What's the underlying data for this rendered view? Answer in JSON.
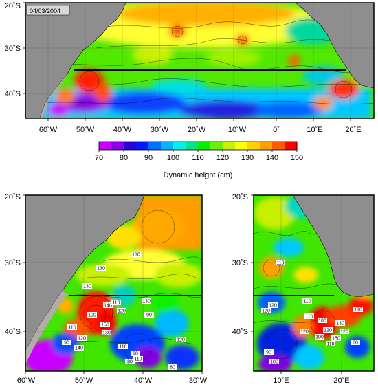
{
  "date": "04/03/2004",
  "colors": {
    "land": "#8e8e8e",
    "shelf": "#b4aca8",
    "section_line": "#000000",
    "frame": "#000000",
    "grid": "#444444"
  },
  "colorbar": {
    "title": "Dynamic height (cm)",
    "ticks": [
      "70",
      "80",
      "90",
      "100",
      "110",
      "120",
      "130",
      "140",
      "150"
    ],
    "stops": [
      {
        "value": 70,
        "color": "#ff00ff"
      },
      {
        "value": 75,
        "color": "#c800ff"
      },
      {
        "value": 80,
        "color": "#8a00e6"
      },
      {
        "value": 85,
        "color": "#2c00d8"
      },
      {
        "value": 90,
        "color": "#0018ff"
      },
      {
        "value": 95,
        "color": "#0070ff"
      },
      {
        "value": 100,
        "color": "#00b4ff"
      },
      {
        "value": 105,
        "color": "#00f0f0"
      },
      {
        "value": 110,
        "color": "#00e28c"
      },
      {
        "value": 115,
        "color": "#00f000"
      },
      {
        "value": 120,
        "color": "#6cf000"
      },
      {
        "value": 125,
        "color": "#c8f000"
      },
      {
        "value": 130,
        "color": "#ffff00"
      },
      {
        "value": 135,
        "color": "#ffd200"
      },
      {
        "value": 140,
        "color": "#ffa000"
      },
      {
        "value": 145,
        "color": "#ff5a00"
      },
      {
        "value": 150,
        "color": "#ff0000"
      }
    ]
  },
  "maps": [
    {
      "id": "main",
      "lon_range": [
        -65,
        25
      ],
      "lat_range": [
        -45,
        -20
      ],
      "x_ticks": [
        "60˚W",
        "50˚W",
        "40˚W",
        "30˚W",
        "20˚W",
        "10˚W",
        "0˚",
        "10˚E",
        "20˚E"
      ],
      "y_ticks": [
        "20˚S",
        "30˚S",
        "40˚S"
      ],
      "section_lat": -35,
      "section_lon": [
        -54,
        18
      ],
      "contour_labels": []
    },
    {
      "id": "west",
      "lon_range": [
        -60,
        -30
      ],
      "lat_range": [
        -45,
        -20
      ],
      "x_ticks": [
        "60˚W",
        "50˚W",
        "40˚W",
        "30˚W"
      ],
      "y_ticks": [
        "20˚S",
        "30˚S",
        "40˚S"
      ],
      "section_lat": -35,
      "section_lon": [
        -53.5,
        -30
      ],
      "contour_labels": [
        "130",
        "130",
        "130",
        "140",
        "110",
        "130",
        "100",
        "150",
        "130",
        "120",
        "110",
        "120",
        "90",
        "140",
        "90",
        "80",
        "120",
        "110",
        "90",
        "110",
        "80"
      ]
    },
    {
      "id": "east",
      "lon_range": [
        5,
        25
      ],
      "lat_range": [
        -45,
        -20
      ],
      "x_ticks": [
        "10˚E",
        "20˚E"
      ],
      "y_ticks": [
        "20˚S",
        "30˚S",
        "40˚S"
      ],
      "section_lat": -35,
      "section_lon": [
        5,
        18
      ],
      "contour_labels": [
        "110",
        "110",
        "120",
        "120",
        "110",
        "120",
        "100",
        "120",
        "100",
        "130",
        "110",
        "130",
        "120",
        "150",
        "80",
        "90",
        "100"
      ]
    }
  ]
}
